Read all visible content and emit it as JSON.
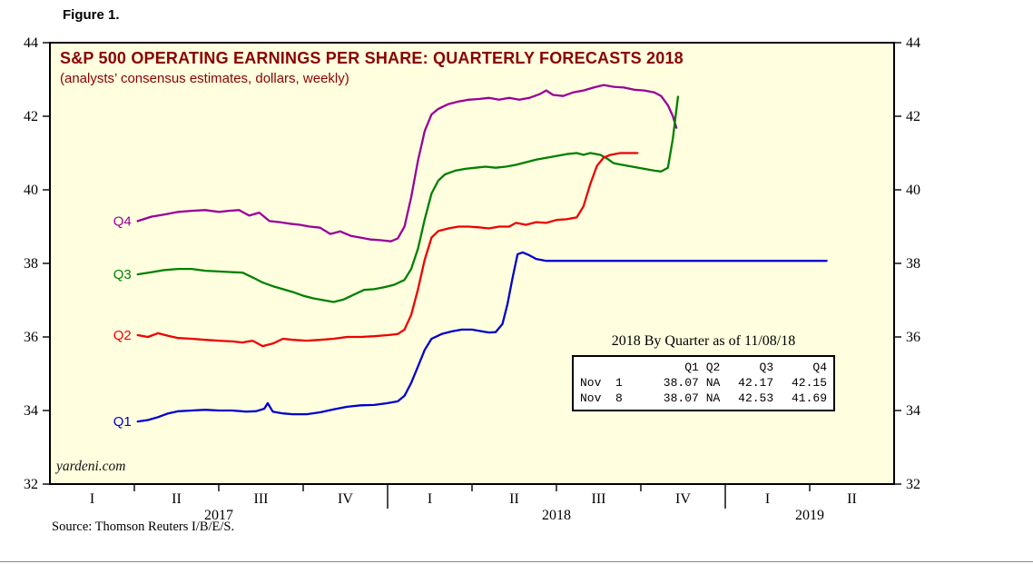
{
  "figure_label": "Figure 1.",
  "source": "Source: Thomson Reuters I/B/E/S.",
  "chart_data": {
    "type": "line",
    "title": "S&P 500 OPERATING EARNINGS PER SHARE: QUARTERLY FORECASTS 2018",
    "subtitle": "(analysts’ consensus estimates, dollars, weekly)",
    "watermark": "yardeni.com",
    "title_color": "#8b0000",
    "plot_bg": "#ffffe0",
    "ylim": [
      32,
      44
    ],
    "yticks": [
      32,
      34,
      36,
      38,
      40,
      42,
      44
    ],
    "xlim": [
      2017.0,
      2019.5
    ],
    "x_axis": {
      "quarter_ticks": [
        2017.25,
        2017.5,
        2017.75,
        2018.25,
        2018.5,
        2018.75,
        2019.25
      ],
      "year_ticks": [
        2018.0,
        2019.0
      ],
      "quarter_labels": [
        {
          "t": 2017.125,
          "label": "I"
        },
        {
          "t": 2017.375,
          "label": "II"
        },
        {
          "t": 2017.625,
          "label": "III"
        },
        {
          "t": 2017.875,
          "label": "IV"
        },
        {
          "t": 2018.125,
          "label": "I"
        },
        {
          "t": 2018.375,
          "label": "II"
        },
        {
          "t": 2018.625,
          "label": "III"
        },
        {
          "t": 2018.875,
          "label": "IV"
        },
        {
          "t": 2019.125,
          "label": "I"
        },
        {
          "t": 2019.375,
          "label": "II"
        }
      ],
      "year_labels": [
        {
          "t": 2017.5,
          "label": "2017"
        },
        {
          "t": 2018.5,
          "label": "2018"
        },
        {
          "t": 2019.25,
          "label": "2019"
        }
      ]
    },
    "series": [
      {
        "name": "Q4",
        "color": "#990099",
        "points": [
          [
            2017.26,
            39.15
          ],
          [
            2017.3,
            39.27
          ],
          [
            2017.34,
            39.33
          ],
          [
            2017.38,
            39.4
          ],
          [
            2017.42,
            39.43
          ],
          [
            2017.46,
            39.45
          ],
          [
            2017.5,
            39.4
          ],
          [
            2017.53,
            39.43
          ],
          [
            2017.56,
            39.45
          ],
          [
            2017.59,
            39.3
          ],
          [
            2017.62,
            39.38
          ],
          [
            2017.65,
            39.15
          ],
          [
            2017.68,
            39.12
          ],
          [
            2017.71,
            39.08
          ],
          [
            2017.74,
            39.05
          ],
          [
            2017.77,
            39.0
          ],
          [
            2017.8,
            38.97
          ],
          [
            2017.83,
            38.8
          ],
          [
            2017.86,
            38.87
          ],
          [
            2017.89,
            38.75
          ],
          [
            2017.92,
            38.7
          ],
          [
            2017.95,
            38.65
          ],
          [
            2017.98,
            38.63
          ],
          [
            2018.01,
            38.6
          ],
          [
            2018.03,
            38.68
          ],
          [
            2018.05,
            39.0
          ],
          [
            2018.07,
            39.8
          ],
          [
            2018.09,
            40.8
          ],
          [
            2018.11,
            41.6
          ],
          [
            2018.13,
            42.05
          ],
          [
            2018.15,
            42.2
          ],
          [
            2018.18,
            42.33
          ],
          [
            2018.21,
            42.4
          ],
          [
            2018.24,
            42.45
          ],
          [
            2018.27,
            42.47
          ],
          [
            2018.3,
            42.5
          ],
          [
            2018.33,
            42.45
          ],
          [
            2018.36,
            42.5
          ],
          [
            2018.39,
            42.45
          ],
          [
            2018.42,
            42.5
          ],
          [
            2018.45,
            42.6
          ],
          [
            2018.47,
            42.7
          ],
          [
            2018.49,
            42.58
          ],
          [
            2018.52,
            42.55
          ],
          [
            2018.55,
            42.65
          ],
          [
            2018.58,
            42.7
          ],
          [
            2018.61,
            42.78
          ],
          [
            2018.64,
            42.85
          ],
          [
            2018.67,
            42.8
          ],
          [
            2018.7,
            42.78
          ],
          [
            2018.73,
            42.72
          ],
          [
            2018.76,
            42.7
          ],
          [
            2018.79,
            42.65
          ],
          [
            2018.81,
            42.55
          ],
          [
            2018.83,
            42.3
          ],
          [
            2018.845,
            42.0
          ],
          [
            2018.855,
            41.69
          ]
        ]
      },
      {
        "name": "Q3",
        "color": "#008000",
        "points": [
          [
            2017.26,
            37.7
          ],
          [
            2017.3,
            37.76
          ],
          [
            2017.34,
            37.82
          ],
          [
            2017.38,
            37.85
          ],
          [
            2017.42,
            37.85
          ],
          [
            2017.46,
            37.8
          ],
          [
            2017.5,
            37.78
          ],
          [
            2017.54,
            37.76
          ],
          [
            2017.57,
            37.75
          ],
          [
            2017.6,
            37.62
          ],
          [
            2017.63,
            37.48
          ],
          [
            2017.66,
            37.38
          ],
          [
            2017.69,
            37.3
          ],
          [
            2017.72,
            37.22
          ],
          [
            2017.75,
            37.12
          ],
          [
            2017.78,
            37.05
          ],
          [
            2017.81,
            37.0
          ],
          [
            2017.84,
            36.95
          ],
          [
            2017.87,
            37.02
          ],
          [
            2017.9,
            37.15
          ],
          [
            2017.93,
            37.28
          ],
          [
            2017.96,
            37.3
          ],
          [
            2017.99,
            37.35
          ],
          [
            2018.02,
            37.42
          ],
          [
            2018.05,
            37.55
          ],
          [
            2018.07,
            37.85
          ],
          [
            2018.09,
            38.4
          ],
          [
            2018.11,
            39.2
          ],
          [
            2018.13,
            39.9
          ],
          [
            2018.15,
            40.25
          ],
          [
            2018.17,
            40.42
          ],
          [
            2018.2,
            40.52
          ],
          [
            2018.23,
            40.57
          ],
          [
            2018.26,
            40.6
          ],
          [
            2018.29,
            40.63
          ],
          [
            2018.32,
            40.6
          ],
          [
            2018.35,
            40.63
          ],
          [
            2018.38,
            40.68
          ],
          [
            2018.41,
            40.75
          ],
          [
            2018.44,
            40.82
          ],
          [
            2018.47,
            40.87
          ],
          [
            2018.5,
            40.92
          ],
          [
            2018.53,
            40.97
          ],
          [
            2018.56,
            41.0
          ],
          [
            2018.58,
            40.95
          ],
          [
            2018.6,
            41.0
          ],
          [
            2018.63,
            40.95
          ],
          [
            2018.65,
            40.85
          ],
          [
            2018.67,
            40.72
          ],
          [
            2018.7,
            40.67
          ],
          [
            2018.73,
            40.62
          ],
          [
            2018.76,
            40.57
          ],
          [
            2018.79,
            40.52
          ],
          [
            2018.81,
            40.5
          ],
          [
            2018.83,
            40.6
          ],
          [
            2018.845,
            41.4
          ],
          [
            2018.86,
            42.53
          ]
        ]
      },
      {
        "name": "Q2",
        "color": "#ee0000",
        "points": [
          [
            2017.26,
            36.05
          ],
          [
            2017.29,
            36.0
          ],
          [
            2017.32,
            36.1
          ],
          [
            2017.35,
            36.03
          ],
          [
            2017.38,
            35.97
          ],
          [
            2017.42,
            35.95
          ],
          [
            2017.46,
            35.92
          ],
          [
            2017.5,
            35.9
          ],
          [
            2017.54,
            35.88
          ],
          [
            2017.57,
            35.85
          ],
          [
            2017.6,
            35.9
          ],
          [
            2017.63,
            35.75
          ],
          [
            2017.66,
            35.82
          ],
          [
            2017.69,
            35.95
          ],
          [
            2017.72,
            35.92
          ],
          [
            2017.76,
            35.9
          ],
          [
            2017.8,
            35.92
          ],
          [
            2017.84,
            35.95
          ],
          [
            2017.88,
            36.0
          ],
          [
            2017.92,
            36.0
          ],
          [
            2017.96,
            36.02
          ],
          [
            2018.0,
            36.05
          ],
          [
            2018.03,
            36.08
          ],
          [
            2018.05,
            36.2
          ],
          [
            2018.07,
            36.6
          ],
          [
            2018.09,
            37.3
          ],
          [
            2018.11,
            38.1
          ],
          [
            2018.13,
            38.7
          ],
          [
            2018.15,
            38.88
          ],
          [
            2018.18,
            38.95
          ],
          [
            2018.21,
            39.0
          ],
          [
            2018.24,
            39.0
          ],
          [
            2018.27,
            38.98
          ],
          [
            2018.3,
            38.95
          ],
          [
            2018.33,
            39.0
          ],
          [
            2018.36,
            39.0
          ],
          [
            2018.38,
            39.1
          ],
          [
            2018.41,
            39.05
          ],
          [
            2018.44,
            39.12
          ],
          [
            2018.47,
            39.1
          ],
          [
            2018.5,
            39.18
          ],
          [
            2018.53,
            39.2
          ],
          [
            2018.56,
            39.25
          ],
          [
            2018.58,
            39.55
          ],
          [
            2018.6,
            40.15
          ],
          [
            2018.62,
            40.65
          ],
          [
            2018.64,
            40.88
          ],
          [
            2018.66,
            40.95
          ],
          [
            2018.69,
            41.0
          ],
          [
            2018.72,
            41.0
          ],
          [
            2018.74,
            41.0
          ]
        ]
      },
      {
        "name": "Q1",
        "color": "#0000cc",
        "points": [
          [
            2017.26,
            33.7
          ],
          [
            2017.29,
            33.74
          ],
          [
            2017.32,
            33.82
          ],
          [
            2017.35,
            33.92
          ],
          [
            2017.38,
            33.98
          ],
          [
            2017.42,
            34.0
          ],
          [
            2017.46,
            34.02
          ],
          [
            2017.5,
            34.0
          ],
          [
            2017.54,
            34.0
          ],
          [
            2017.58,
            33.97
          ],
          [
            2017.61,
            33.98
          ],
          [
            2017.635,
            34.05
          ],
          [
            2017.645,
            34.2
          ],
          [
            2017.66,
            33.97
          ],
          [
            2017.69,
            33.92
          ],
          [
            2017.72,
            33.9
          ],
          [
            2017.76,
            33.9
          ],
          [
            2017.8,
            33.95
          ],
          [
            2017.84,
            34.03
          ],
          [
            2017.88,
            34.1
          ],
          [
            2017.92,
            34.14
          ],
          [
            2017.96,
            34.15
          ],
          [
            2018.0,
            34.2
          ],
          [
            2018.03,
            34.25
          ],
          [
            2018.05,
            34.4
          ],
          [
            2018.07,
            34.75
          ],
          [
            2018.09,
            35.2
          ],
          [
            2018.11,
            35.65
          ],
          [
            2018.13,
            35.95
          ],
          [
            2018.16,
            36.08
          ],
          [
            2018.19,
            36.15
          ],
          [
            2018.22,
            36.2
          ],
          [
            2018.25,
            36.2
          ],
          [
            2018.28,
            36.15
          ],
          [
            2018.3,
            36.12
          ],
          [
            2018.32,
            36.13
          ],
          [
            2018.34,
            36.35
          ],
          [
            2018.355,
            36.9
          ],
          [
            2018.37,
            37.6
          ],
          [
            2018.385,
            38.25
          ],
          [
            2018.4,
            38.3
          ],
          [
            2018.42,
            38.22
          ],
          [
            2018.44,
            38.12
          ],
          [
            2018.47,
            38.07
          ],
          [
            2019.3,
            38.07
          ]
        ]
      }
    ],
    "inset": {
      "title": "2018 By Quarter as of 11/08/18",
      "columns": [
        "Q1",
        "Q2",
        "Q3",
        "Q4"
      ],
      "rows": [
        {
          "label": "Nov  1",
          "values": [
            "38.07",
            "NA",
            "42.17",
            "42.15"
          ]
        },
        {
          "label": "Nov  8",
          "values": [
            "38.07",
            "NA",
            "42.53",
            "41.69"
          ]
        }
      ]
    }
  }
}
